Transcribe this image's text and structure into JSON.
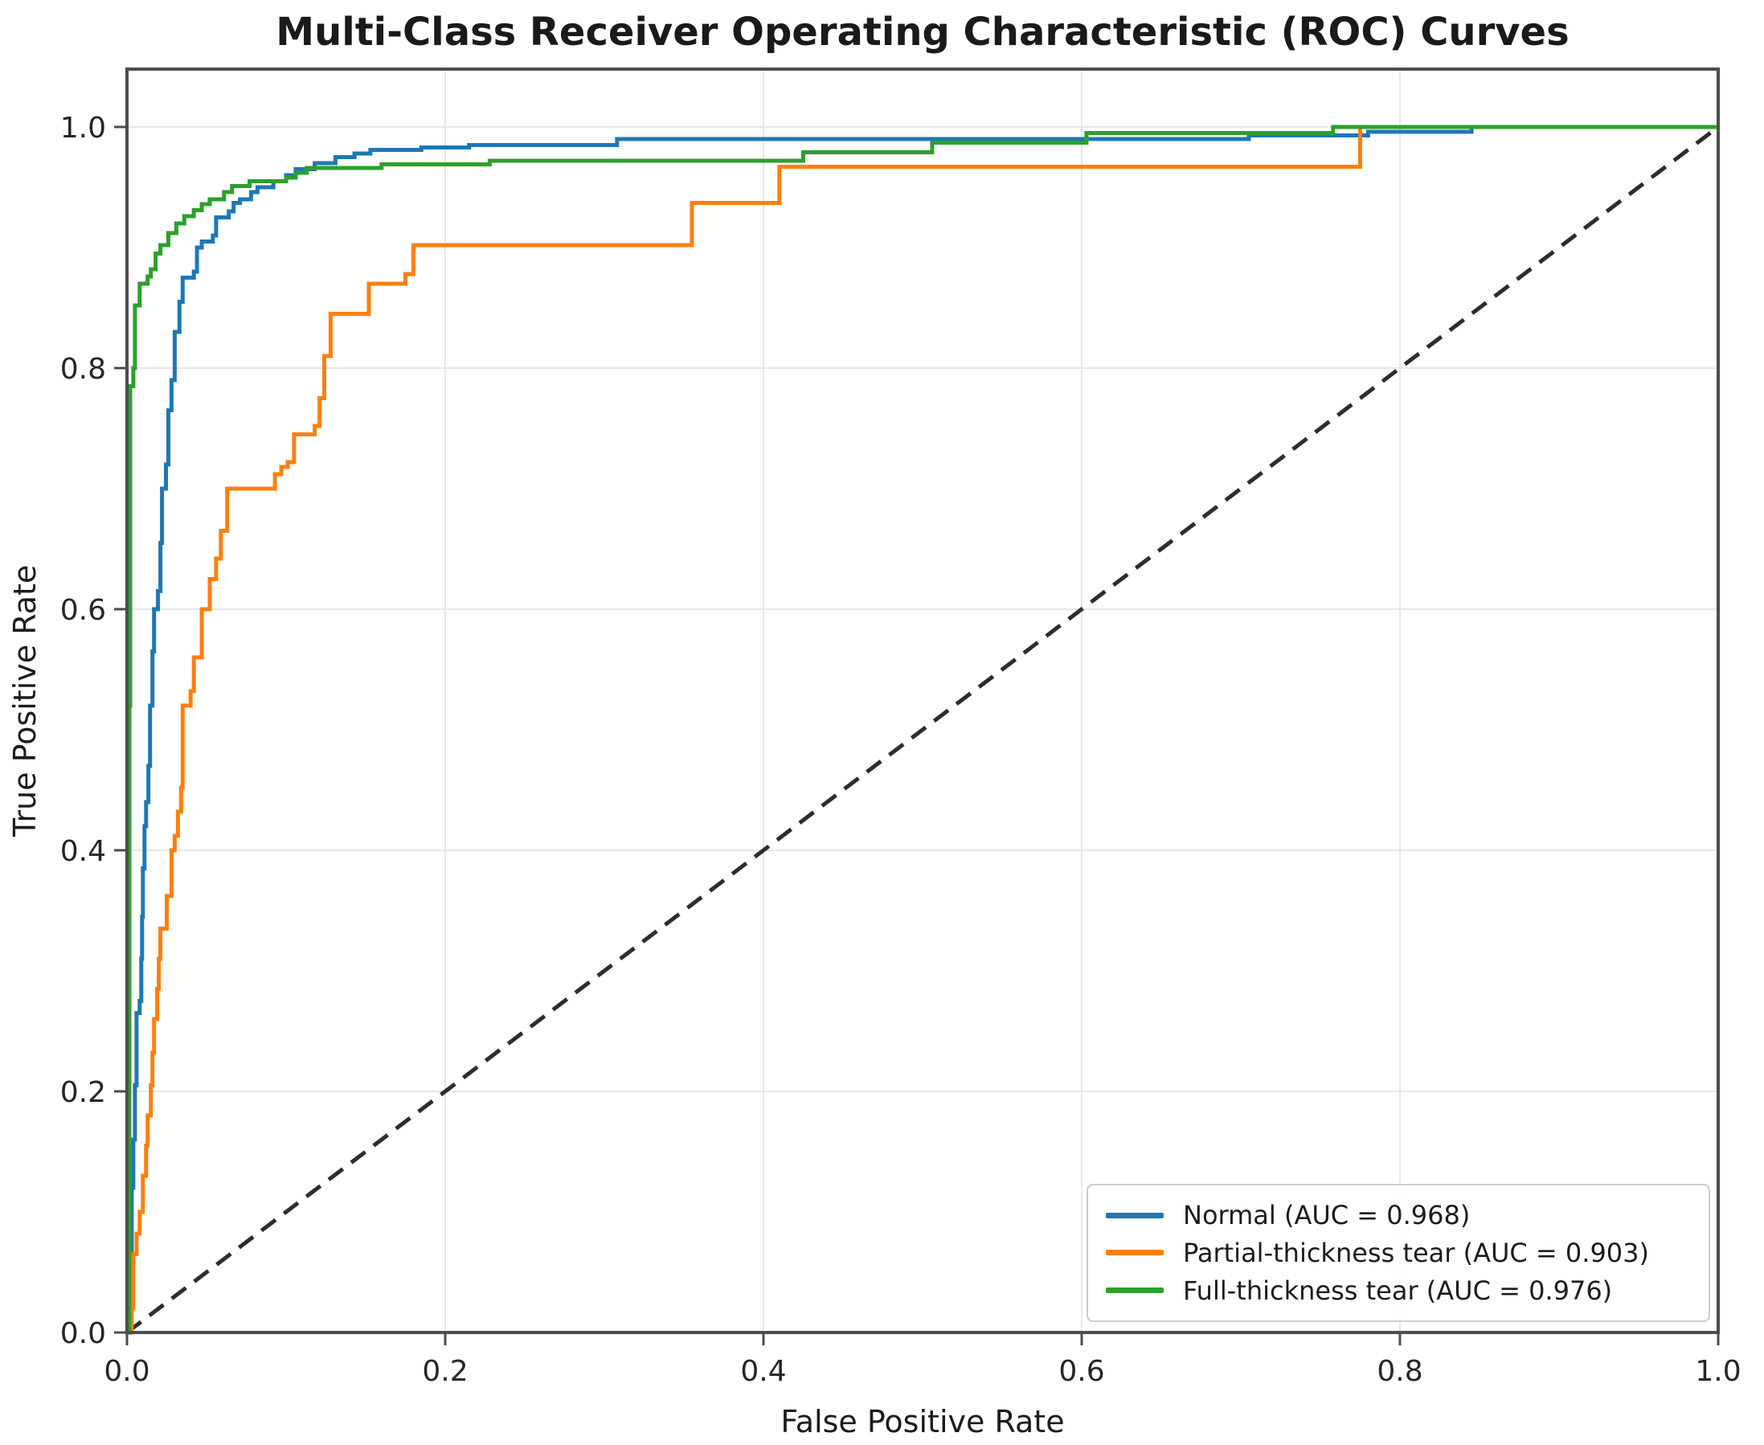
{
  "chart_data": {
    "type": "line",
    "subtype": "roc-step-curves",
    "title": "Multi-Class Receiver Operating Characteristic (ROC) Curves",
    "xlabel": "False Positive Rate",
    "ylabel": "True Positive Rate",
    "xlim": [
      0.0,
      1.0
    ],
    "ylim": [
      0.0,
      1.048
    ],
    "grid": true,
    "grid_color": "#e8e8e8",
    "axis_color": "#4d4d4d",
    "text_color": "#1c1c1c",
    "background_color": "#ffffff",
    "x_ticks": {
      "values": [
        0.0,
        0.2,
        0.4,
        0.6,
        0.8,
        1.0
      ],
      "labels": [
        "0.0",
        "0.2",
        "0.4",
        "0.6",
        "0.8",
        "1.0"
      ]
    },
    "y_ticks": {
      "values": [
        0.0,
        0.2,
        0.4,
        0.6,
        0.8,
        1.0
      ],
      "labels": [
        "0.0",
        "0.2",
        "0.4",
        "0.6",
        "0.8",
        "1.0"
      ]
    },
    "legend_position": "lower right",
    "diagonal": {
      "name": "chance-line",
      "points": [
        [
          0,
          0
        ],
        [
          1,
          1
        ]
      ],
      "color": "#2d2d2d",
      "dash": [
        22,
        13
      ],
      "width": 5
    },
    "series": [
      {
        "name": "Normal",
        "auc": 0.968,
        "label": "Normal (AUC = 0.968)",
        "color": "#1f77b4",
        "width": 5,
        "step": true,
        "points": [
          [
            0,
            0
          ],
          [
            0.002,
            0.06
          ],
          [
            0.003,
            0.12
          ],
          [
            0.004,
            0.16
          ],
          [
            0.005,
            0.205
          ],
          [
            0.006,
            0.265
          ],
          [
            0.008,
            0.275
          ],
          [
            0.009,
            0.31
          ],
          [
            0.0095,
            0.345
          ],
          [
            0.01,
            0.385
          ],
          [
            0.011,
            0.42
          ],
          [
            0.012,
            0.44
          ],
          [
            0.0135,
            0.47
          ],
          [
            0.0145,
            0.52
          ],
          [
            0.016,
            0.565
          ],
          [
            0.017,
            0.6
          ],
          [
            0.0195,
            0.615
          ],
          [
            0.021,
            0.655
          ],
          [
            0.022,
            0.7
          ],
          [
            0.0245,
            0.72
          ],
          [
            0.026,
            0.765
          ],
          [
            0.028,
            0.79
          ],
          [
            0.03,
            0.83
          ],
          [
            0.033,
            0.855
          ],
          [
            0.035,
            0.875
          ],
          [
            0.042,
            0.88
          ],
          [
            0.044,
            0.9
          ],
          [
            0.047,
            0.905
          ],
          [
            0.054,
            0.91
          ],
          [
            0.056,
            0.925
          ],
          [
            0.064,
            0.93
          ],
          [
            0.067,
            0.937
          ],
          [
            0.071,
            0.94
          ],
          [
            0.078,
            0.946
          ],
          [
            0.082,
            0.95
          ],
          [
            0.092,
            0.955
          ],
          [
            0.1,
            0.96
          ],
          [
            0.106,
            0.965
          ],
          [
            0.118,
            0.97
          ],
          [
            0.131,
            0.975
          ],
          [
            0.143,
            0.978
          ],
          [
            0.153,
            0.981
          ],
          [
            0.185,
            0.983
          ],
          [
            0.215,
            0.985
          ],
          [
            0.308,
            0.99
          ],
          [
            0.705,
            0.993
          ],
          [
            0.78,
            0.996
          ],
          [
            0.845,
            1.0
          ],
          [
            1.0,
            1.0
          ]
        ]
      },
      {
        "name": "Partial-thickness tear",
        "auc": 0.903,
        "label": "Partial-thickness tear (AUC = 0.903)",
        "color": "#ff7f0e",
        "width": 5,
        "step": true,
        "points": [
          [
            0,
            0
          ],
          [
            0.003,
            0.02
          ],
          [
            0.004,
            0.065
          ],
          [
            0.006,
            0.082
          ],
          [
            0.008,
            0.1
          ],
          [
            0.01,
            0.13
          ],
          [
            0.012,
            0.155
          ],
          [
            0.013,
            0.18
          ],
          [
            0.015,
            0.205
          ],
          [
            0.016,
            0.232
          ],
          [
            0.017,
            0.26
          ],
          [
            0.019,
            0.285
          ],
          [
            0.02,
            0.31
          ],
          [
            0.021,
            0.335
          ],
          [
            0.025,
            0.362
          ],
          [
            0.028,
            0.4
          ],
          [
            0.03,
            0.412
          ],
          [
            0.032,
            0.432
          ],
          [
            0.034,
            0.452
          ],
          [
            0.035,
            0.52
          ],
          [
            0.04,
            0.532
          ],
          [
            0.042,
            0.56
          ],
          [
            0.047,
            0.6
          ],
          [
            0.052,
            0.625
          ],
          [
            0.056,
            0.642
          ],
          [
            0.059,
            0.665
          ],
          [
            0.063,
            0.7
          ],
          [
            0.093,
            0.712
          ],
          [
            0.097,
            0.718
          ],
          [
            0.101,
            0.722
          ],
          [
            0.105,
            0.745
          ],
          [
            0.118,
            0.752
          ],
          [
            0.121,
            0.775
          ],
          [
            0.124,
            0.81
          ],
          [
            0.128,
            0.845
          ],
          [
            0.152,
            0.87
          ],
          [
            0.175,
            0.878
          ],
          [
            0.18,
            0.902
          ],
          [
            0.355,
            0.937
          ],
          [
            0.41,
            0.967
          ],
          [
            0.775,
            1.0
          ],
          [
            1.0,
            1.0
          ]
        ]
      },
      {
        "name": "Full-thickness tear",
        "auc": 0.976,
        "label": "Full-thickness tear (AUC = 0.976)",
        "color": "#2ca02c",
        "width": 5,
        "step": true,
        "points": [
          [
            0,
            0
          ],
          [
            0.0015,
            0.52
          ],
          [
            0.002,
            0.785
          ],
          [
            0.004,
            0.8
          ],
          [
            0.005,
            0.852
          ],
          [
            0.008,
            0.87
          ],
          [
            0.013,
            0.876
          ],
          [
            0.015,
            0.882
          ],
          [
            0.018,
            0.895
          ],
          [
            0.021,
            0.902
          ],
          [
            0.026,
            0.912
          ],
          [
            0.031,
            0.92
          ],
          [
            0.036,
            0.926
          ],
          [
            0.042,
            0.931
          ],
          [
            0.047,
            0.936
          ],
          [
            0.052,
            0.94
          ],
          [
            0.061,
            0.946
          ],
          [
            0.066,
            0.951
          ],
          [
            0.077,
            0.955
          ],
          [
            0.1,
            0.958
          ],
          [
            0.106,
            0.962
          ],
          [
            0.113,
            0.966
          ],
          [
            0.16,
            0.969
          ],
          [
            0.228,
            0.972
          ],
          [
            0.425,
            0.979
          ],
          [
            0.506,
            0.987
          ],
          [
            0.603,
            0.995
          ],
          [
            0.758,
            1.0
          ],
          [
            1.0,
            1.0
          ]
        ]
      }
    ]
  },
  "legend": {
    "entries": [
      {
        "label": "Normal (AUC = 0.968)",
        "color": "#1f77b4"
      },
      {
        "label": "Partial-thickness tear (AUC = 0.903)",
        "color": "#ff7f0e"
      },
      {
        "label": "Full-thickness tear (AUC = 0.976)",
        "color": "#2ca02c"
      }
    ]
  }
}
